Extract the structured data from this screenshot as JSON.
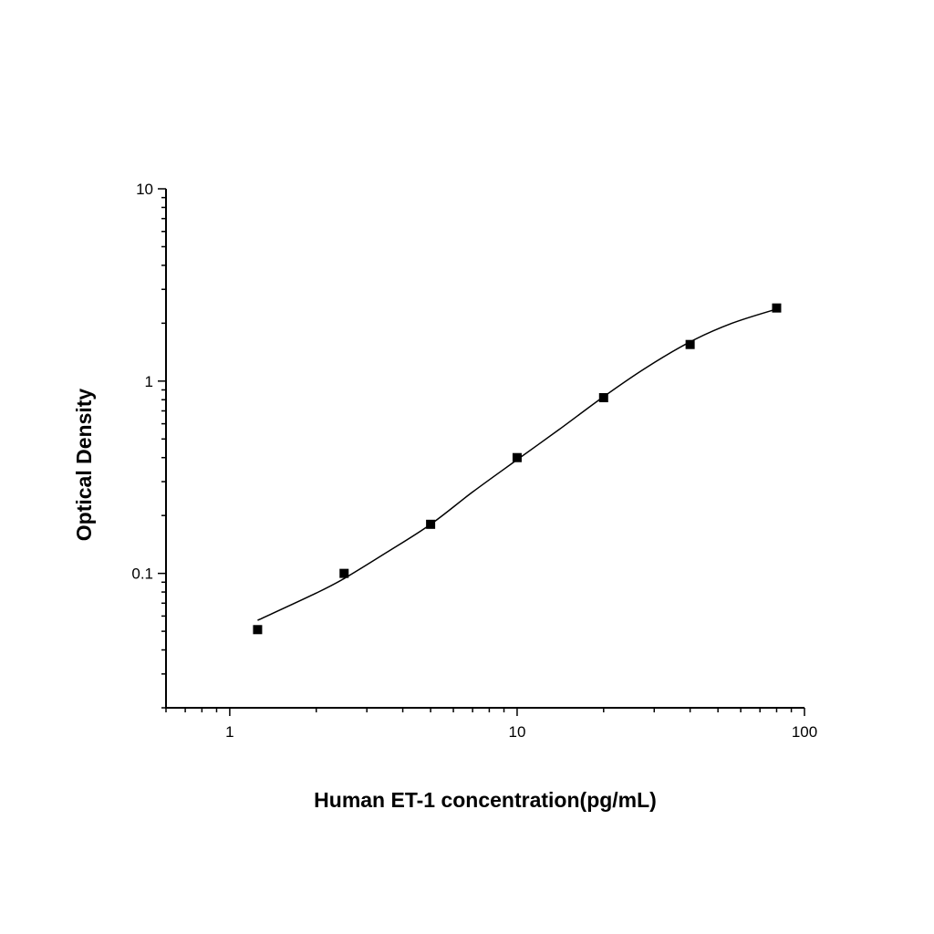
{
  "chart_data": {
    "type": "scatter",
    "title": "",
    "xlabel": "Human ET-1 concentration(pg/mL)",
    "ylabel": "Optical Density",
    "x_scale": "log",
    "y_scale": "log",
    "xlim": [
      0.6,
      100
    ],
    "ylim": [
      0.02,
      10
    ],
    "x_ticks": [
      {
        "value": 1,
        "label": "1"
      },
      {
        "value": 10,
        "label": "10"
      },
      {
        "value": 100,
        "label": "100"
      }
    ],
    "y_ticks": [
      {
        "value": 0.1,
        "label": "0.1"
      },
      {
        "value": 1,
        "label": "1"
      },
      {
        "value": 10,
        "label": "10"
      }
    ],
    "grid": false,
    "legend": "none",
    "series": [
      {
        "marker": "square",
        "color": "#000000",
        "points": [
          {
            "x": 1.25,
            "y": 0.051
          },
          {
            "x": 2.5,
            "y": 0.1
          },
          {
            "x": 5,
            "y": 0.18
          },
          {
            "x": 10,
            "y": 0.4
          },
          {
            "x": 20,
            "y": 0.82
          },
          {
            "x": 40,
            "y": 1.55
          },
          {
            "x": 80,
            "y": 2.4
          }
        ]
      },
      {
        "marker": "none",
        "line": "fit-curve",
        "color": "#000000",
        "points": [
          {
            "x": 1.25,
            "y": 0.057
          },
          {
            "x": 2.0,
            "y": 0.079
          },
          {
            "x": 2.5,
            "y": 0.094
          },
          {
            "x": 3.5,
            "y": 0.128
          },
          {
            "x": 5,
            "y": 0.18
          },
          {
            "x": 7,
            "y": 0.265
          },
          {
            "x": 10,
            "y": 0.39
          },
          {
            "x": 14,
            "y": 0.56
          },
          {
            "x": 20,
            "y": 0.83
          },
          {
            "x": 28,
            "y": 1.17
          },
          {
            "x": 40,
            "y": 1.6
          },
          {
            "x": 56,
            "y": 2.0
          },
          {
            "x": 80,
            "y": 2.37
          }
        ]
      }
    ]
  }
}
